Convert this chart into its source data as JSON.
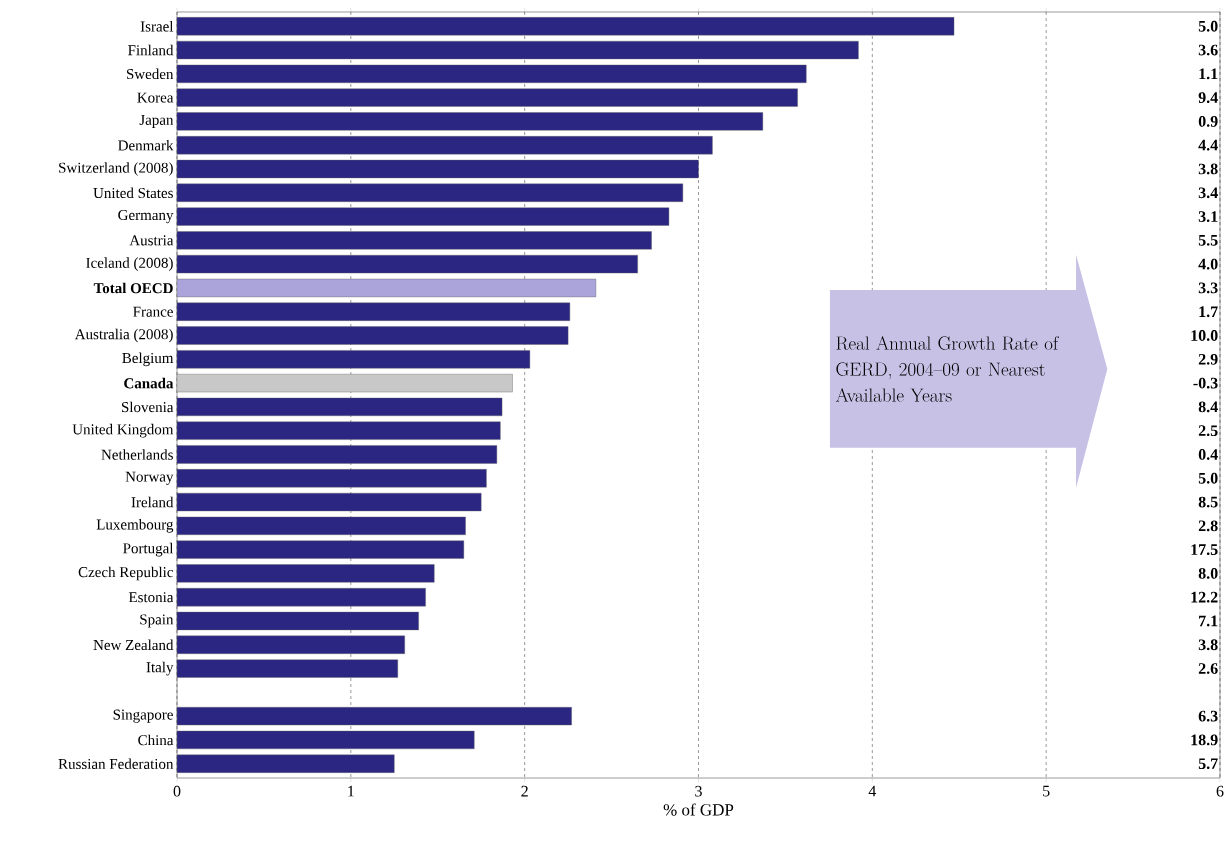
{
  "chart_data": {
    "type": "bar",
    "orientation": "horizontal",
    "xlabel": "% of GDP",
    "categories": [
      "Israel",
      "Finland",
      "Sweden",
      "Korea",
      "Japan",
      "Denmark",
      "Switzerland (2008)",
      "United States",
      "Germany",
      "Austria",
      "Iceland (2008)",
      "**Total OECD**",
      "France",
      "Australia (2008)",
      "Belgium",
      "**Canada**",
      "Slovenia",
      "United Kingdom",
      "Netherlands",
      "Norway",
      "Ireland",
      "Luxembourg",
      "Portugal",
      "Czech Republic",
      "Estonia",
      "Spain",
      "New Zealand",
      "Italy",
      null,
      "Singapore",
      "China",
      "Russian Federation"
    ],
    "values": [
      4.47,
      3.92,
      3.62,
      3.57,
      3.37,
      3.08,
      3.0,
      2.91,
      2.83,
      2.73,
      2.65,
      2.41,
      2.26,
      2.25,
      2.03,
      1.93,
      1.87,
      1.86,
      1.84,
      1.78,
      1.75,
      1.66,
      1.65,
      1.48,
      1.43,
      1.39,
      1.31,
      1.27,
      null,
      2.27,
      1.71,
      1.25
    ],
    "colors": [
      "#2b2682",
      "#2b2682",
      "#2b2682",
      "#2b2682",
      "#2b2682",
      "#2b2682",
      "#2b2682",
      "#2b2682",
      "#2b2682",
      "#2b2682",
      "#2b2682",
      "#aaa4da",
      "#2b2682",
      "#2b2682",
      "#2b2682",
      "#c8c8c8",
      "#2b2682",
      "#2b2682",
      "#2b2682",
      "#2b2682",
      "#2b2682",
      "#2b2682",
      "#2b2682",
      "#2b2682",
      "#2b2682",
      "#2b2682",
      "#2b2682",
      "#2b2682",
      "#2b2682",
      "#2b2682",
      "#2b2682",
      "#2b2682"
    ],
    "xlim": [
      0,
      6
    ],
    "xticks": [
      0,
      1,
      2,
      3,
      4,
      5,
      6
    ],
    "grid": "x",
    "annotations": [
      "Real Annual Growth Rate of GERD, 2004–09 or Nearest Available Years",
      "5.0",
      "3.6",
      "1.1",
      "9.4",
      "0.9",
      "4.4",
      "3.8",
      "3.4",
      "3.1",
      "5.5",
      "4.0",
      "3.3",
      "1.7",
      "10.0",
      "2.9",
      "-0.3",
      "8.4",
      "2.5",
      "0.4",
      "5.0",
      "8.5",
      "2.8",
      "17.5",
      "8.0",
      "12.2",
      "7.1",
      "3.8",
      "2.6",
      "6.3",
      "18.9",
      "5.7"
    ]
  }
}
